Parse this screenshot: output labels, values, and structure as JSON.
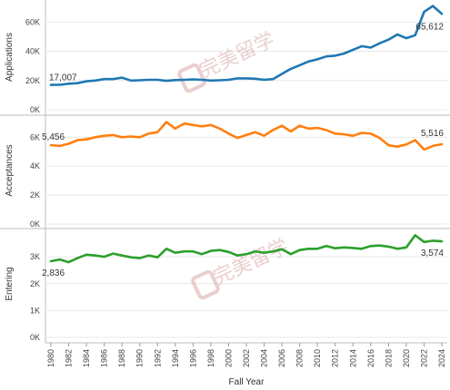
{
  "watermark": "完美留学",
  "colors": {
    "applications": "#1f77b4",
    "acceptances": "#ff7f0e",
    "entering": "#2ca02c",
    "grid": "#e8e8e8",
    "watermark": "#d9a8a8"
  },
  "chart_data": [
    {
      "type": "line",
      "ylabel": "Applications",
      "y_ticks": [
        "0K",
        "20K",
        "40K",
        "60K"
      ],
      "ylim": [
        0,
        72000
      ],
      "x": [
        1980,
        1981,
        1982,
        1983,
        1984,
        1985,
        1986,
        1987,
        1988,
        1989,
        1990,
        1991,
        1992,
        1993,
        1994,
        1995,
        1996,
        1997,
        1998,
        1999,
        2000,
        2001,
        2002,
        2003,
        2004,
        2005,
        2006,
        2007,
        2008,
        2009,
        2010,
        2011,
        2012,
        2013,
        2014,
        2015,
        2016,
        2017,
        2018,
        2019,
        2020,
        2021,
        2022,
        2023,
        2024
      ],
      "series": [
        {
          "values": [
            17007,
            17100,
            17800,
            18200,
            19500,
            20000,
            21000,
            21000,
            22000,
            20000,
            20200,
            20500,
            20500,
            19800,
            20300,
            20500,
            20800,
            20500,
            20000,
            20200,
            20500,
            21500,
            21500,
            21200,
            20500,
            21000,
            24500,
            28000,
            30500,
            33000,
            34500,
            36500,
            37000,
            38500,
            41000,
            43500,
            42500,
            45500,
            48000,
            51500,
            49000,
            51000,
            67000,
            71000,
            65612
          ]
        }
      ],
      "labels": {
        "first": "17,007",
        "last": "65,612"
      }
    },
    {
      "type": "line",
      "ylabel": "Acceptances",
      "y_ticks": [
        "0K",
        "2K",
        "4K",
        "6K"
      ],
      "ylim": [
        0,
        7400
      ],
      "x": [
        1980,
        1981,
        1982,
        1983,
        1984,
        1985,
        1986,
        1987,
        1988,
        1989,
        1990,
        1991,
        1992,
        1993,
        1994,
        1995,
        1996,
        1997,
        1998,
        1999,
        2000,
        2001,
        2002,
        2003,
        2004,
        2005,
        2006,
        2007,
        2008,
        2009,
        2010,
        2011,
        2012,
        2013,
        2014,
        2015,
        2016,
        2017,
        2018,
        2019,
        2020,
        2021,
        2022,
        2023,
        2024
      ],
      "series": [
        {
          "values": [
            5456,
            5400,
            5550,
            5800,
            5850,
            6000,
            6100,
            6150,
            6000,
            6050,
            6000,
            6250,
            6350,
            7050,
            6600,
            6950,
            6850,
            6750,
            6850,
            6600,
            6250,
            5950,
            6150,
            6350,
            6100,
            6500,
            6800,
            6400,
            6800,
            6600,
            6650,
            6500,
            6250,
            6200,
            6100,
            6300,
            6250,
            5950,
            5450,
            5350,
            5500,
            5800,
            5150,
            5400,
            5516
          ]
        }
      ],
      "labels": {
        "first": "5,456",
        "last": "5,516"
      }
    },
    {
      "type": "line",
      "ylabel": "Entering",
      "y_ticks": [
        "0K",
        "1K",
        "2K",
        "3K"
      ],
      "ylim": [
        0,
        3950
      ],
      "x": [
        1980,
        1981,
        1982,
        1983,
        1984,
        1985,
        1986,
        1987,
        1988,
        1989,
        1990,
        1991,
        1992,
        1993,
        1994,
        1995,
        1996,
        1997,
        1998,
        1999,
        2000,
        2001,
        2002,
        2003,
        2004,
        2005,
        2006,
        2007,
        2008,
        2009,
        2010,
        2011,
        2012,
        2013,
        2014,
        2015,
        2016,
        2017,
        2018,
        2019,
        2020,
        2021,
        2022,
        2023,
        2024
      ],
      "series": [
        {
          "values": [
            2836,
            2900,
            2800,
            2950,
            3080,
            3050,
            3000,
            3120,
            3050,
            2980,
            2950,
            3050,
            2980,
            3300,
            3150,
            3200,
            3200,
            3100,
            3220,
            3250,
            3180,
            3050,
            3100,
            3200,
            3150,
            3200,
            3280,
            3100,
            3250,
            3300,
            3300,
            3400,
            3320,
            3350,
            3330,
            3300,
            3400,
            3420,
            3380,
            3300,
            3350,
            3800,
            3550,
            3600,
            3574
          ]
        }
      ],
      "labels": {
        "first": "2,836",
        "last": "3,574"
      }
    }
  ],
  "x_axis": {
    "title": "Fall Year",
    "ticks": [
      "1980",
      "1982",
      "1984",
      "1986",
      "1988",
      "1990",
      "1992",
      "1994",
      "1996",
      "1998",
      "2000",
      "2002",
      "2004",
      "2006",
      "2008",
      "2010",
      "2012",
      "2014",
      "2016",
      "2018",
      "2020",
      "2022",
      "2024"
    ]
  }
}
